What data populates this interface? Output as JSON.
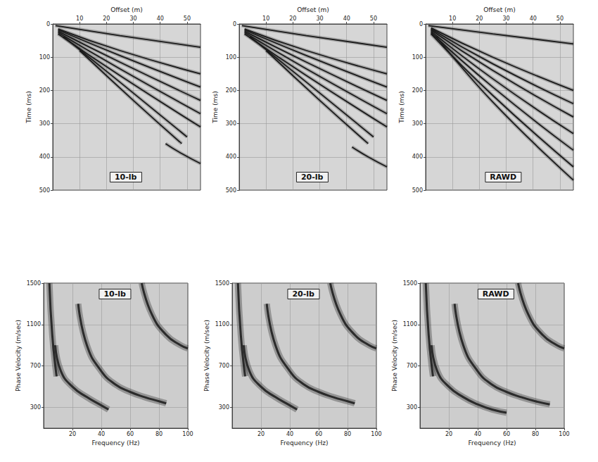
{
  "chart_data": [
    {
      "type": "line",
      "title": "10-lb",
      "xlabel": "Offset (m)",
      "ylabel": "Time (ms)",
      "xlim": [
        0,
        55
      ],
      "xticks": [
        10,
        20,
        30,
        40,
        50
      ],
      "ylim": [
        500,
        0
      ],
      "yticks": [
        0,
        100,
        200,
        300,
        400,
        500
      ],
      "grid": true,
      "color": "#1a1a1a",
      "series": [
        {
          "x": [
            1,
            25,
            55
          ],
          "values": [
            5,
            35,
            70
          ]
        },
        {
          "x": [
            2,
            25,
            55
          ],
          "values": [
            15,
            80,
            150
          ]
        },
        {
          "x": [
            2,
            25,
            55
          ],
          "values": [
            18,
            95,
            190
          ]
        },
        {
          "x": [
            2,
            25,
            55
          ],
          "values": [
            22,
            115,
            230
          ]
        },
        {
          "x": [
            2,
            25,
            55
          ],
          "values": [
            26,
            135,
            270
          ]
        },
        {
          "x": [
            2,
            25,
            55
          ],
          "values": [
            30,
            155,
            310
          ]
        },
        {
          "x": [
            4,
            25,
            50
          ],
          "values": [
            38,
            175,
            340
          ]
        },
        {
          "x": [
            10,
            30,
            48
          ],
          "values": [
            80,
            230,
            360
          ]
        },
        {
          "x": [
            42,
            48,
            55
          ],
          "values": [
            360,
            390,
            420
          ]
        }
      ]
    },
    {
      "type": "line",
      "title": "20-lb",
      "xlabel": "Offset (m)",
      "ylabel": "Time (ms)",
      "xlim": [
        0,
        55
      ],
      "xticks": [
        10,
        20,
        30,
        40,
        50
      ],
      "ylim": [
        500,
        0
      ],
      "yticks": [
        0,
        100,
        200,
        300,
        400,
        500
      ],
      "grid": true,
      "color": "#1a1a1a",
      "series": [
        {
          "x": [
            1,
            25,
            55
          ],
          "values": [
            5,
            35,
            70
          ]
        },
        {
          "x": [
            2,
            25,
            55
          ],
          "values": [
            15,
            80,
            150
          ]
        },
        {
          "x": [
            2,
            25,
            55
          ],
          "values": [
            18,
            95,
            190
          ]
        },
        {
          "x": [
            2,
            25,
            55
          ],
          "values": [
            22,
            115,
            230
          ]
        },
        {
          "x": [
            2,
            25,
            55
          ],
          "values": [
            26,
            135,
            270
          ]
        },
        {
          "x": [
            2,
            25,
            55
          ],
          "values": [
            30,
            155,
            310
          ]
        },
        {
          "x": [
            4,
            25,
            50
          ],
          "values": [
            38,
            175,
            340
          ]
        },
        {
          "x": [
            10,
            30,
            48
          ],
          "values": [
            80,
            230,
            360
          ]
        },
        {
          "x": [
            42,
            48,
            55
          ],
          "values": [
            370,
            400,
            430
          ]
        }
      ]
    },
    {
      "type": "line",
      "title": "RAWD",
      "xlabel": "Offset (m)",
      "ylabel": "Time (ms)",
      "xlim": [
        0,
        55
      ],
      "xticks": [
        10,
        20,
        30,
        40,
        50
      ],
      "ylim": [
        500,
        0
      ],
      "yticks": [
        0,
        100,
        200,
        300,
        400,
        500
      ],
      "grid": true,
      "color": "#1a1a1a",
      "series": [
        {
          "x": [
            1,
            25,
            55
          ],
          "values": [
            5,
            30,
            60
          ]
        },
        {
          "x": [
            2,
            25,
            55
          ],
          "values": [
            12,
            100,
            200
          ]
        },
        {
          "x": [
            2,
            25,
            55
          ],
          "values": [
            15,
            120,
            240
          ]
        },
        {
          "x": [
            2,
            25,
            55
          ],
          "values": [
            18,
            140,
            280
          ]
        },
        {
          "x": [
            2,
            25,
            55
          ],
          "values": [
            22,
            165,
            330
          ]
        },
        {
          "x": [
            2,
            25,
            55
          ],
          "values": [
            26,
            190,
            380
          ]
        },
        {
          "x": [
            2,
            25,
            55
          ],
          "values": [
            30,
            215,
            430
          ]
        },
        {
          "x": [
            4,
            25,
            55
          ],
          "values": [
            38,
            235,
            470
          ]
        }
      ]
    },
    {
      "type": "line",
      "title": "10-lb",
      "xlabel": "Frequency (Hz)",
      "ylabel": "Phase Velocity (m/sec)",
      "xlim": [
        0,
        100
      ],
      "xticks": [
        20,
        40,
        60,
        80,
        100
      ],
      "ylim": [
        100,
        1500
      ],
      "yticks": [
        300,
        700,
        1100,
        1500
      ],
      "grid": true,
      "color": "#2b2b2b",
      "series": [
        {
          "x": [
            4,
            6,
            9
          ],
          "values": [
            1500,
            1000,
            600
          ]
        },
        {
          "x": [
            8,
            12,
            20,
            30,
            40,
            45
          ],
          "values": [
            900,
            650,
            500,
            400,
            320,
            280
          ]
        },
        {
          "x": [
            24,
            30,
            40,
            50,
            60,
            70,
            80,
            85
          ],
          "values": [
            1300,
            900,
            650,
            520,
            450,
            400,
            360,
            340
          ]
        },
        {
          "x": [
            68,
            75,
            85,
            95,
            100
          ],
          "values": [
            1500,
            1200,
            1000,
            900,
            870
          ]
        }
      ]
    },
    {
      "type": "line",
      "title": "20-lb",
      "xlabel": "Frequency (Hz)",
      "ylabel": "Phase Velocity (m/sec)",
      "xlim": [
        0,
        100
      ],
      "xticks": [
        20,
        40,
        60,
        80,
        100
      ],
      "ylim": [
        100,
        1500
      ],
      "yticks": [
        300,
        700,
        1100,
        1500
      ],
      "grid": true,
      "color": "#2b2b2b",
      "series": [
        {
          "x": [
            4,
            6,
            9
          ],
          "values": [
            1500,
            1000,
            600
          ]
        },
        {
          "x": [
            8,
            12,
            20,
            30,
            40,
            45
          ],
          "values": [
            900,
            650,
            500,
            400,
            320,
            280
          ]
        },
        {
          "x": [
            24,
            30,
            40,
            50,
            60,
            70,
            80,
            85
          ],
          "values": [
            1300,
            900,
            650,
            520,
            450,
            400,
            360,
            340
          ]
        },
        {
          "x": [
            68,
            75,
            85,
            95,
            100
          ],
          "values": [
            1500,
            1200,
            1000,
            900,
            870
          ]
        }
      ]
    },
    {
      "type": "line",
      "title": "RAWD",
      "xlabel": "Frequency (Hz)",
      "ylabel": "Phase Velocity (m/sec)",
      "xlim": [
        0,
        100
      ],
      "xticks": [
        20,
        40,
        60,
        80,
        100
      ],
      "ylim": [
        100,
        1500
      ],
      "yticks": [
        300,
        700,
        1100,
        1500
      ],
      "grid": true,
      "color": "#2b2b2b",
      "series": [
        {
          "x": [
            4,
            6,
            9
          ],
          "values": [
            1500,
            1000,
            600
          ]
        },
        {
          "x": [
            8,
            12,
            20,
            30,
            40,
            50,
            60
          ],
          "values": [
            900,
            650,
            500,
            400,
            330,
            280,
            250
          ]
        },
        {
          "x": [
            24,
            30,
            40,
            50,
            60,
            70,
            80,
            90
          ],
          "values": [
            1300,
            900,
            650,
            520,
            450,
            400,
            360,
            330
          ]
        },
        {
          "x": [
            68,
            75,
            85,
            95,
            100
          ],
          "values": [
            1500,
            1200,
            1000,
            900,
            870
          ]
        }
      ]
    }
  ]
}
